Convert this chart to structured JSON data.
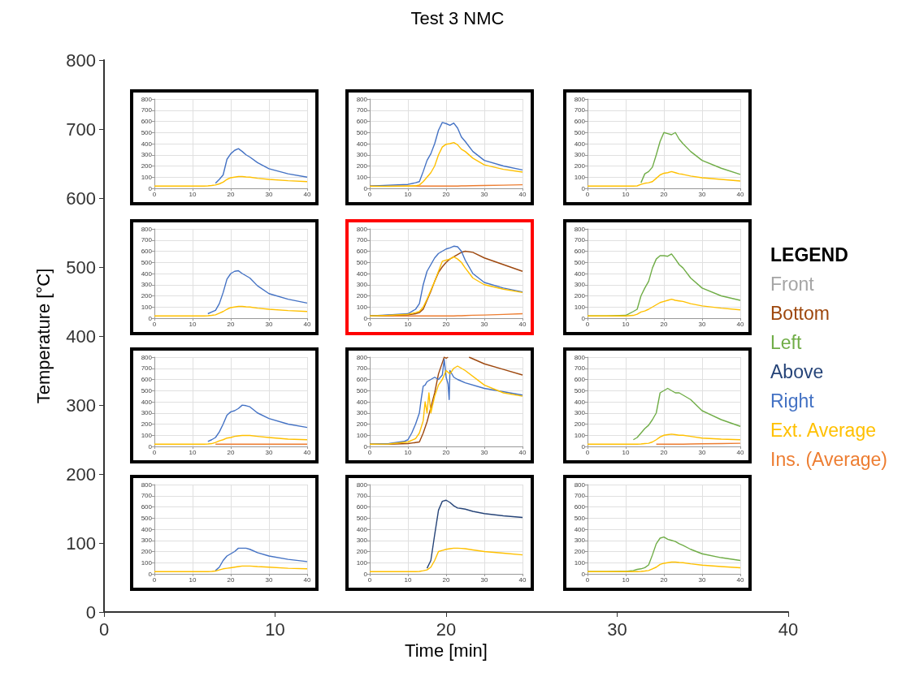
{
  "chart_data": [
    {
      "type": "line",
      "title": "Test 3 NMC",
      "xlabel": "Time [min]",
      "ylabel": "Temperature [°C]",
      "xlim": [
        0,
        40
      ],
      "xticks": [
        0,
        10,
        20,
        30,
        40
      ],
      "ylim": [
        0,
        800
      ],
      "yticks": [
        0,
        100,
        200,
        300,
        400,
        500,
        600,
        700,
        800
      ]
    },
    {
      "type": "line",
      "xlim": [
        0,
        40
      ],
      "xticks": [
        0,
        10,
        20,
        30,
        40
      ],
      "ylim": [
        0,
        800
      ],
      "yticks": [
        0,
        100,
        200,
        300,
        400,
        500,
        600,
        700,
        800
      ],
      "grid": true,
      "x": [
        0,
        5,
        10,
        12,
        13,
        14,
        15,
        16,
        17,
        18,
        19,
        20,
        21,
        22,
        23,
        24,
        25,
        27,
        30,
        35,
        40
      ],
      "series": [
        {
          "color": "#4472c4",
          "values": [
            null,
            null,
            null,
            null,
            null,
            null,
            null,
            45,
            80,
            120,
            260,
            310,
            340,
            355,
            330,
            300,
            280,
            230,
            175,
            130,
            100
          ]
        },
        {
          "color": "#ffc000",
          "values": [
            20,
            20,
            20,
            20,
            20,
            22,
            25,
            30,
            40,
            55,
            80,
            95,
            100,
            105,
            105,
            102,
            100,
            90,
            80,
            68,
            60
          ]
        }
      ]
    },
    {
      "type": "line",
      "xlim": [
        0,
        40
      ],
      "xticks": [
        0,
        10,
        20,
        30,
        40
      ],
      "ylim": [
        0,
        800
      ],
      "yticks": [
        0,
        100,
        200,
        300,
        400,
        500,
        600,
        700,
        800
      ],
      "grid": true,
      "x": [
        0,
        5,
        10,
        12,
        13,
        14,
        15,
        16,
        17,
        18,
        19,
        20,
        21,
        22,
        23,
        24,
        25,
        27,
        30,
        35,
        40
      ],
      "series": [
        {
          "color": "#ed7d31",
          "values": [
            20,
            20,
            20,
            20,
            20,
            20,
            20,
            20,
            20,
            20,
            20,
            20,
            20,
            20,
            20,
            22,
            22,
            24,
            25,
            28,
            32
          ]
        },
        {
          "color": "#4472c4",
          "values": [
            20,
            28,
            35,
            50,
            60,
            150,
            250,
            310,
            400,
            520,
            590,
            580,
            565,
            585,
            540,
            460,
            420,
            330,
            250,
            200,
            165
          ]
        },
        {
          "color": "#ffc000",
          "values": [
            18,
            18,
            20,
            22,
            30,
            60,
            100,
            140,
            200,
            300,
            370,
            395,
            400,
            410,
            390,
            350,
            330,
            270,
            210,
            170,
            145
          ]
        }
      ]
    },
    {
      "type": "line",
      "xlim": [
        0,
        40
      ],
      "xticks": [
        0,
        10,
        20,
        30,
        40
      ],
      "ylim": [
        0,
        800
      ],
      "yticks": [
        0,
        100,
        200,
        300,
        400,
        500,
        600,
        700,
        800
      ],
      "grid": true,
      "x": [
        0,
        5,
        10,
        12,
        13,
        14,
        15,
        16,
        17,
        18,
        19,
        20,
        21,
        22,
        23,
        24,
        25,
        27,
        30,
        35,
        40
      ],
      "series": [
        {
          "color": "#70ad47",
          "values": [
            null,
            null,
            null,
            null,
            null,
            50,
            130,
            150,
            190,
            300,
            420,
            500,
            490,
            480,
            500,
            440,
            400,
            330,
            250,
            180,
            125
          ]
        },
        {
          "color": "#ffc000",
          "values": [
            20,
            20,
            20,
            20,
            22,
            35,
            45,
            50,
            60,
            90,
            120,
            135,
            140,
            150,
            140,
            130,
            125,
            110,
            95,
            80,
            65
          ]
        }
      ]
    },
    {
      "type": "line",
      "xlim": [
        0,
        40
      ],
      "xticks": [
        0,
        10,
        20,
        30,
        40
      ],
      "ylim": [
        0,
        800
      ],
      "yticks": [
        0,
        100,
        200,
        300,
        400,
        500,
        600,
        700,
        800
      ],
      "grid": true,
      "x": [
        0,
        5,
        10,
        12,
        13,
        14,
        15,
        16,
        17,
        18,
        19,
        20,
        21,
        22,
        23,
        24,
        25,
        27,
        30,
        35,
        40
      ],
      "series": [
        {
          "color": "#4472c4",
          "values": [
            null,
            null,
            null,
            null,
            null,
            40,
            55,
            70,
            130,
            230,
            350,
            400,
            420,
            425,
            400,
            380,
            360,
            290,
            220,
            170,
            135
          ]
        },
        {
          "color": "#ffc000",
          "values": [
            20,
            20,
            20,
            20,
            20,
            22,
            25,
            30,
            45,
            60,
            80,
            95,
            100,
            105,
            105,
            102,
            100,
            90,
            80,
            68,
            60
          ]
        }
      ]
    },
    {
      "type": "line",
      "xlim": [
        0,
        40
      ],
      "xticks": [
        0,
        10,
        20,
        30,
        40
      ],
      "ylim": [
        0,
        800
      ],
      "yticks": [
        0,
        100,
        200,
        300,
        400,
        500,
        600,
        700,
        800
      ],
      "grid": true,
      "x": [
        0,
        5,
        10,
        12,
        13,
        14,
        15,
        16,
        17,
        18,
        19,
        20,
        21,
        22,
        23,
        24,
        25,
        27,
        30,
        35,
        40
      ],
      "series": [
        {
          "color": "#ed7d31",
          "values": [
            20,
            20,
            20,
            20,
            20,
            20,
            20,
            20,
            20,
            20,
            20,
            20,
            20,
            20,
            22,
            22,
            24,
            26,
            28,
            34,
            40
          ]
        },
        {
          "color": "#9e480e",
          "values": [
            20,
            25,
            30,
            40,
            50,
            80,
            160,
            240,
            330,
            410,
            460,
            500,
            530,
            550,
            570,
            590,
            600,
            590,
            540,
            480,
            420
          ]
        },
        {
          "color": "#4472c4",
          "values": [
            20,
            30,
            40,
            80,
            130,
            300,
            420,
            480,
            540,
            580,
            600,
            620,
            630,
            645,
            640,
            600,
            520,
            400,
            320,
            270,
            235
          ]
        },
        {
          "color": "#ffc000",
          "values": [
            20,
            25,
            35,
            50,
            60,
            100,
            170,
            250,
            330,
            420,
            510,
            520,
            530,
            550,
            530,
            500,
            450,
            360,
            300,
            260,
            230
          ]
        }
      ]
    },
    {
      "type": "line",
      "xlim": [
        0,
        40
      ],
      "xticks": [
        0,
        10,
        20,
        30,
        40
      ],
      "ylim": [
        0,
        800
      ],
      "yticks": [
        0,
        100,
        200,
        300,
        400,
        500,
        600,
        700,
        800
      ],
      "grid": true,
      "x": [
        0,
        5,
        10,
        12,
        13,
        14,
        15,
        16,
        17,
        18,
        19,
        20,
        21,
        22,
        23,
        24,
        25,
        27,
        30,
        35,
        40
      ],
      "series": [
        {
          "color": "#70ad47",
          "values": [
            20,
            20,
            25,
            60,
            80,
            200,
            270,
            330,
            450,
            530,
            560,
            560,
            555,
            575,
            530,
            480,
            450,
            360,
            270,
            200,
            160
          ]
        },
        {
          "color": "#ffc000",
          "values": [
            20,
            20,
            20,
            25,
            35,
            55,
            65,
            80,
            100,
            120,
            140,
            150,
            160,
            170,
            160,
            155,
            150,
            130,
            110,
            90,
            75
          ]
        }
      ]
    },
    {
      "type": "line",
      "xlim": [
        0,
        40
      ],
      "xticks": [
        0,
        10,
        20,
        30,
        40
      ],
      "ylim": [
        0,
        800
      ],
      "yticks": [
        0,
        100,
        200,
        300,
        400,
        500,
        600,
        700,
        800
      ],
      "grid": true,
      "x": [
        0,
        5,
        10,
        12,
        13,
        14,
        15,
        16,
        17,
        18,
        19,
        20,
        21,
        22,
        23,
        24,
        25,
        27,
        30,
        35,
        40
      ],
      "series": [
        {
          "color": "#ed7d31",
          "values": [
            null,
            null,
            null,
            null,
            null,
            null,
            null,
            20,
            20,
            20,
            20,
            20,
            20,
            20,
            20,
            20,
            20,
            20,
            20,
            20,
            20
          ]
        },
        {
          "color": "#4472c4",
          "values": [
            null,
            null,
            null,
            null,
            null,
            45,
            60,
            80,
            130,
            200,
            280,
            310,
            320,
            340,
            370,
            365,
            355,
            300,
            250,
            200,
            170
          ]
        },
        {
          "color": "#ffc000",
          "values": [
            20,
            20,
            20,
            20,
            20,
            22,
            25,
            35,
            50,
            60,
            75,
            80,
            90,
            95,
            98,
            98,
            98,
            90,
            80,
            65,
            60
          ]
        }
      ]
    },
    {
      "type": "line",
      "xlim": [
        0,
        40
      ],
      "xticks": [
        0,
        10,
        20,
        30,
        40
      ],
      "ylim": [
        0,
        800
      ],
      "yticks": [
        0,
        100,
        200,
        300,
        400,
        500,
        600,
        700,
        800
      ],
      "grid": true,
      "series": [
        {
          "color": "#9e480e",
          "x": [
            0,
            5,
            10,
            13,
            14,
            15,
            16,
            17,
            18,
            19,
            19.5,
            20,
            20.5,
            21,
            26,
            30,
            35,
            40
          ],
          "values": [
            20,
            20,
            25,
            40,
            120,
            220,
            350,
            480,
            650,
            750,
            800,
            790,
            800,
            null,
            800,
            740,
            690,
            640
          ]
        },
        {
          "color": "#4472c4",
          "x": [
            0,
            5,
            9,
            10,
            11,
            12,
            13,
            13.5,
            14,
            14.5,
            15,
            16,
            17,
            18,
            19,
            19.5,
            20,
            20.5,
            20.8,
            21,
            22,
            23,
            25,
            30,
            40
          ],
          "values": [
            20,
            25,
            45,
            60,
            120,
            200,
            300,
            430,
            540,
            550,
            580,
            600,
            620,
            600,
            640,
            780,
            620,
            560,
            420,
            680,
            620,
            600,
            570,
            520,
            460
          ]
        },
        {
          "color": "#ffc000",
          "x": [
            0,
            5,
            10,
            12,
            13,
            14,
            14.5,
            15,
            15.5,
            16,
            17,
            18,
            19,
            20,
            21,
            22,
            23,
            25,
            30,
            35,
            40
          ],
          "values": [
            20,
            22,
            40,
            70,
            120,
            230,
            400,
            300,
            480,
            300,
            450,
            550,
            600,
            680,
            650,
            700,
            720,
            680,
            550,
            480,
            450
          ]
        }
      ]
    },
    {
      "type": "line",
      "xlim": [
        0,
        40
      ],
      "xticks": [
        0,
        10,
        20,
        30,
        40
      ],
      "ylim": [
        0,
        800
      ],
      "yticks": [
        0,
        100,
        200,
        300,
        400,
        500,
        600,
        700,
        800
      ],
      "grid": true,
      "x": [
        0,
        5,
        10,
        12,
        13,
        14,
        15,
        16,
        17,
        18,
        19,
        20,
        21,
        22,
        23,
        24,
        25,
        27,
        30,
        35,
        40
      ],
      "series": [
        {
          "color": "#ed7d31",
          "values": [
            null,
            null,
            null,
            null,
            null,
            null,
            null,
            null,
            null,
            20,
            20,
            20,
            20,
            20,
            20,
            20,
            20,
            22,
            24,
            25,
            28
          ]
        },
        {
          "color": "#70ad47",
          "values": [
            null,
            null,
            null,
            60,
            80,
            120,
            160,
            190,
            240,
            300,
            480,
            500,
            520,
            500,
            480,
            480,
            460,
            420,
            320,
            240,
            180
          ]
        },
        {
          "color": "#ffc000",
          "values": [
            20,
            20,
            20,
            20,
            20,
            22,
            25,
            28,
            40,
            60,
            85,
            100,
            105,
            110,
            105,
            100,
            100,
            90,
            75,
            65,
            60
          ]
        }
      ]
    },
    {
      "type": "line",
      "xlim": [
        0,
        40
      ],
      "xticks": [
        0,
        10,
        20,
        30,
        40
      ],
      "ylim": [
        0,
        800
      ],
      "yticks": [
        0,
        100,
        200,
        300,
        400,
        500,
        600,
        700,
        800
      ],
      "grid": true,
      "x": [
        0,
        5,
        10,
        12,
        13,
        14,
        15,
        16,
        17,
        18,
        19,
        20,
        21,
        22,
        23,
        24,
        25,
        27,
        30,
        35,
        40
      ],
      "series": [
        {
          "color": "#4472c4",
          "values": [
            null,
            null,
            null,
            null,
            null,
            null,
            null,
            30,
            60,
            120,
            160,
            180,
            200,
            230,
            230,
            230,
            220,
            190,
            160,
            130,
            110
          ]
        },
        {
          "color": "#ffc000",
          "values": [
            20,
            20,
            20,
            20,
            20,
            20,
            22,
            25,
            35,
            45,
            50,
            55,
            60,
            65,
            70,
            70,
            70,
            65,
            60,
            50,
            45
          ]
        }
      ]
    },
    {
      "type": "line",
      "xlim": [
        0,
        40
      ],
      "xticks": [
        0,
        10,
        20,
        30,
        40
      ],
      "ylim": [
        0,
        800
      ],
      "yticks": [
        0,
        100,
        200,
        300,
        400,
        500,
        600,
        700,
        800
      ],
      "grid": true,
      "x": [
        0,
        5,
        10,
        12,
        13,
        14,
        15,
        16,
        17,
        18,
        19,
        20,
        21,
        22,
        23,
        24,
        25,
        27,
        30,
        35,
        40
      ],
      "series": [
        {
          "color": "#264478",
          "values": [
            null,
            null,
            null,
            null,
            null,
            null,
            50,
            120,
            350,
            570,
            650,
            660,
            640,
            610,
            590,
            585,
            580,
            560,
            540,
            520,
            505
          ]
        },
        {
          "color": "#ffc000",
          "values": [
            20,
            20,
            20,
            20,
            22,
            28,
            35,
            60,
            120,
            200,
            210,
            220,
            225,
            230,
            230,
            228,
            225,
            215,
            200,
            185,
            170
          ]
        }
      ]
    },
    {
      "type": "line",
      "xlim": [
        0,
        40
      ],
      "xticks": [
        0,
        10,
        20,
        30,
        40
      ],
      "ylim": [
        0,
        800
      ],
      "yticks": [
        0,
        100,
        200,
        300,
        400,
        500,
        600,
        700,
        800
      ],
      "grid": true,
      "x": [
        0,
        5,
        10,
        12,
        13,
        14,
        15,
        16,
        17,
        18,
        19,
        20,
        21,
        22,
        23,
        24,
        25,
        27,
        30,
        35,
        40
      ],
      "series": [
        {
          "color": "#70ad47",
          "values": [
            20,
            20,
            22,
            30,
            40,
            45,
            55,
            80,
            170,
            270,
            320,
            330,
            310,
            300,
            290,
            270,
            255,
            220,
            180,
            145,
            120
          ]
        },
        {
          "color": "#ffc000",
          "values": [
            20,
            20,
            20,
            20,
            20,
            22,
            25,
            30,
            45,
            60,
            85,
            95,
            100,
            105,
            105,
            102,
            100,
            90,
            78,
            65,
            55
          ]
        }
      ]
    },
    {
      "type": "other",
      "legend_title": "LEGEND",
      "series": [
        {
          "name": "Front",
          "color": "#a5a5a5"
        },
        {
          "name": "Bottom",
          "color": "#9e480e"
        },
        {
          "name": "Left",
          "color": "#70ad47"
        },
        {
          "name": "Above",
          "color": "#264478"
        },
        {
          "name": "Right",
          "color": "#4472c4"
        },
        {
          "name": "Ext. Average",
          "color": "#ffc000"
        },
        {
          "name": "Ins. (Average)",
          "color": "#ed7d31"
        }
      ]
    }
  ]
}
